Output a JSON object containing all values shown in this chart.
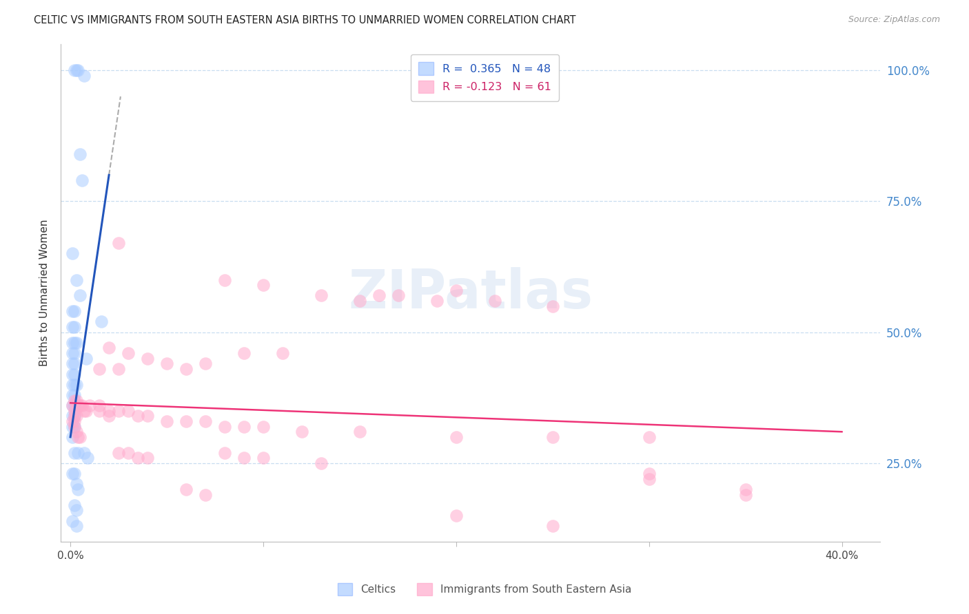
{
  "title": "CELTIC VS IMMIGRANTS FROM SOUTH EASTERN ASIA BIRTHS TO UNMARRIED WOMEN CORRELATION CHART",
  "source": "Source: ZipAtlas.com",
  "ylabel": "Births to Unmarried Women",
  "xlim": [
    -0.005,
    0.42
  ],
  "ylim": [
    0.1,
    1.05
  ],
  "x_ticks": [
    0.0,
    0.1,
    0.2,
    0.3,
    0.4
  ],
  "x_tick_labels": [
    "0.0%",
    "",
    "",
    "",
    "40.0%"
  ],
  "y_ticks_right": [
    0.25,
    0.5,
    0.75,
    1.0
  ],
  "y_tick_labels_right": [
    "25.0%",
    "50.0%",
    "75.0%",
    "100.0%"
  ],
  "legend_color1": "#aaccff",
  "legend_color2": "#ffaacc",
  "trendline_blue": "#2255bb",
  "trendline_pink": "#ee3377",
  "watermark": "ZIPatlas",
  "blue_scatter": [
    [
      0.002,
      1.0
    ],
    [
      0.003,
      1.0
    ],
    [
      0.004,
      1.0
    ],
    [
      0.007,
      0.99
    ],
    [
      0.005,
      0.84
    ],
    [
      0.006,
      0.79
    ],
    [
      0.001,
      0.65
    ],
    [
      0.003,
      0.6
    ],
    [
      0.005,
      0.57
    ],
    [
      0.001,
      0.54
    ],
    [
      0.002,
      0.54
    ],
    [
      0.001,
      0.51
    ],
    [
      0.002,
      0.51
    ],
    [
      0.001,
      0.48
    ],
    [
      0.002,
      0.48
    ],
    [
      0.003,
      0.48
    ],
    [
      0.001,
      0.46
    ],
    [
      0.002,
      0.46
    ],
    [
      0.001,
      0.44
    ],
    [
      0.002,
      0.44
    ],
    [
      0.001,
      0.42
    ],
    [
      0.002,
      0.42
    ],
    [
      0.001,
      0.4
    ],
    [
      0.002,
      0.4
    ],
    [
      0.003,
      0.4
    ],
    [
      0.001,
      0.38
    ],
    [
      0.002,
      0.38
    ],
    [
      0.001,
      0.36
    ],
    [
      0.002,
      0.36
    ],
    [
      0.001,
      0.34
    ],
    [
      0.002,
      0.34
    ],
    [
      0.001,
      0.32
    ],
    [
      0.002,
      0.32
    ],
    [
      0.001,
      0.3
    ],
    [
      0.008,
      0.45
    ],
    [
      0.016,
      0.52
    ],
    [
      0.007,
      0.27
    ],
    [
      0.009,
      0.26
    ],
    [
      0.003,
      0.21
    ],
    [
      0.004,
      0.2
    ],
    [
      0.002,
      0.17
    ],
    [
      0.003,
      0.16
    ],
    [
      0.001,
      0.14
    ],
    [
      0.003,
      0.13
    ],
    [
      0.002,
      0.27
    ],
    [
      0.004,
      0.27
    ],
    [
      0.001,
      0.23
    ],
    [
      0.002,
      0.23
    ]
  ],
  "pink_scatter": [
    [
      0.002,
      0.37
    ],
    [
      0.003,
      0.37
    ],
    [
      0.004,
      0.36
    ],
    [
      0.005,
      0.36
    ],
    [
      0.006,
      0.36
    ],
    [
      0.007,
      0.35
    ],
    [
      0.008,
      0.35
    ],
    [
      0.002,
      0.34
    ],
    [
      0.003,
      0.34
    ],
    [
      0.002,
      0.32
    ],
    [
      0.003,
      0.31
    ],
    [
      0.004,
      0.3
    ],
    [
      0.005,
      0.3
    ],
    [
      0.001,
      0.36
    ],
    [
      0.002,
      0.35
    ],
    [
      0.001,
      0.33
    ],
    [
      0.002,
      0.33
    ],
    [
      0.02,
      0.47
    ],
    [
      0.03,
      0.46
    ],
    [
      0.04,
      0.45
    ],
    [
      0.05,
      0.44
    ],
    [
      0.015,
      0.43
    ],
    [
      0.025,
      0.43
    ],
    [
      0.06,
      0.43
    ],
    [
      0.07,
      0.44
    ],
    [
      0.01,
      0.36
    ],
    [
      0.015,
      0.36
    ],
    [
      0.02,
      0.35
    ],
    [
      0.025,
      0.35
    ],
    [
      0.03,
      0.35
    ],
    [
      0.035,
      0.34
    ],
    [
      0.04,
      0.34
    ],
    [
      0.05,
      0.33
    ],
    [
      0.06,
      0.33
    ],
    [
      0.07,
      0.33
    ],
    [
      0.08,
      0.32
    ],
    [
      0.09,
      0.32
    ],
    [
      0.1,
      0.32
    ],
    [
      0.12,
      0.31
    ],
    [
      0.15,
      0.31
    ],
    [
      0.2,
      0.3
    ],
    [
      0.25,
      0.3
    ],
    [
      0.3,
      0.3
    ],
    [
      0.025,
      0.67
    ],
    [
      0.08,
      0.6
    ],
    [
      0.1,
      0.59
    ],
    [
      0.13,
      0.57
    ],
    [
      0.15,
      0.56
    ],
    [
      0.17,
      0.57
    ],
    [
      0.2,
      0.58
    ],
    [
      0.22,
      0.56
    ],
    [
      0.25,
      0.55
    ],
    [
      0.09,
      0.46
    ],
    [
      0.11,
      0.46
    ],
    [
      0.16,
      0.57
    ],
    [
      0.19,
      0.56
    ],
    [
      0.015,
      0.35
    ],
    [
      0.02,
      0.34
    ],
    [
      0.025,
      0.27
    ],
    [
      0.03,
      0.27
    ],
    [
      0.035,
      0.26
    ],
    [
      0.04,
      0.26
    ],
    [
      0.08,
      0.27
    ],
    [
      0.09,
      0.26
    ],
    [
      0.1,
      0.26
    ],
    [
      0.13,
      0.25
    ],
    [
      0.3,
      0.23
    ],
    [
      0.35,
      0.2
    ],
    [
      0.06,
      0.2
    ],
    [
      0.07,
      0.19
    ],
    [
      0.2,
      0.15
    ],
    [
      0.25,
      0.13
    ],
    [
      0.3,
      0.22
    ],
    [
      0.35,
      0.19
    ]
  ],
  "blue_trendline_manual": [
    [
      0.0,
      0.3
    ],
    [
      0.02,
      0.8
    ]
  ],
  "pink_trendline_manual": [
    [
      0.0,
      0.365
    ],
    [
      0.4,
      0.31
    ]
  ]
}
